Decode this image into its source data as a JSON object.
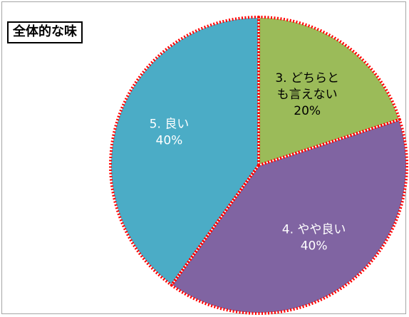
{
  "chart_data": {
    "type": "pie",
    "title": "全体的な味",
    "slices": [
      {
        "label_lines": [
          "3. どちらと",
          "も言えない"
        ],
        "value": 20,
        "value_label": "20%",
        "color": "#9bbb59"
      },
      {
        "label_lines": [
          "4. やや良い"
        ],
        "value": 40,
        "value_label": "40%",
        "color": "#8064a2"
      },
      {
        "label_lines": [
          "5. 良い"
        ],
        "value": 40,
        "value_label": "40%",
        "color": "#4bacc6"
      }
    ],
    "slice_border": "#ffffff",
    "outline_color": "#ff0000",
    "label_color": "#ffffff",
    "label_dark_color": "#000000"
  }
}
